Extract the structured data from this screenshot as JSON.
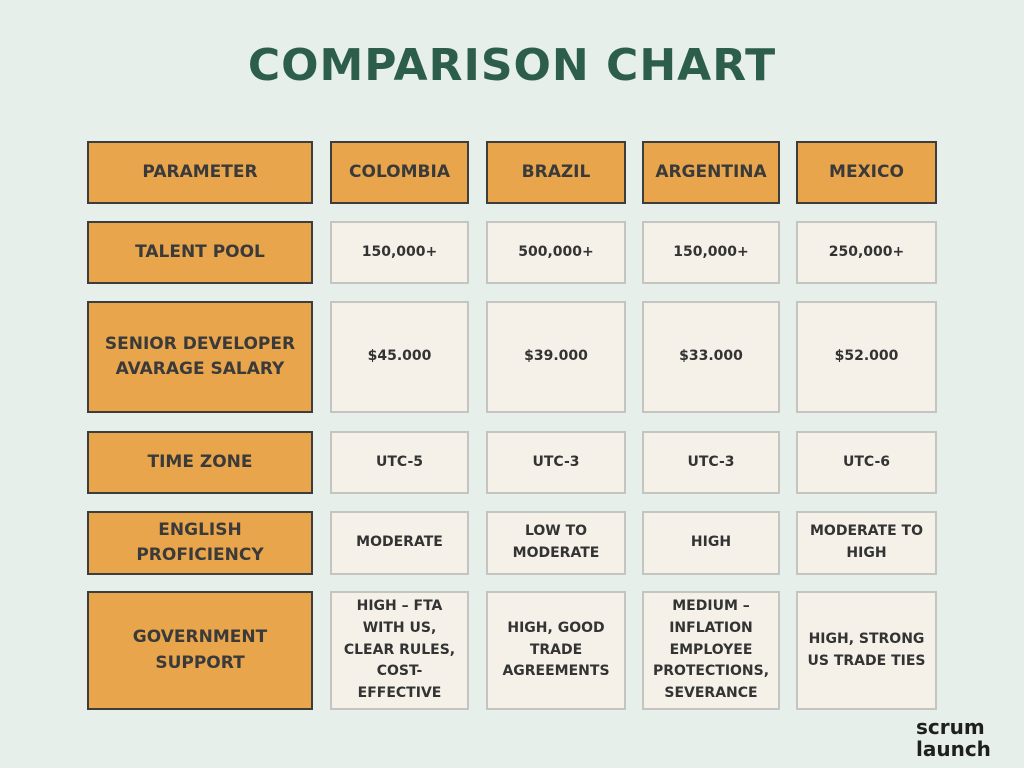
{
  "title": "COMPARISON CHART",
  "table": {
    "header": [
      "PARAMETER",
      "COLOMBIA",
      "BRAZIL",
      "ARGENTINA",
      "MEXICO"
    ],
    "rows": [
      [
        "TALENT POOL",
        "150,000+",
        "500,000+",
        "150,000+",
        "250,000+"
      ],
      [
        "SENIOR DEVELOPER AVARAGE SALARY",
        "$45.000",
        "$39.000",
        "$33.000",
        "$52.000"
      ],
      [
        "TIME ZONE",
        "UTC-5",
        "UTC-3",
        "UTC-3",
        "UTC-6"
      ],
      [
        "ENGLISH PROFICIENCY",
        "MODERATE",
        "LOW TO MODERATE",
        "HIGH",
        "MODERATE TO HIGH"
      ],
      [
        "GOVERNMENT SUPPORT",
        "HIGH – FTA WITH US, CLEAR RULES, COST-EFFECTIVE",
        "HIGH, GOOD TRADE AGREEMENTS",
        "MEDIUM – INFLATION EMPLOYEE PROTECTIONS, SEVERANCE",
        "HIGH, STRONG US TRADE TIES"
      ]
    ]
  },
  "logo": [
    "scrum",
    "launch"
  ]
}
